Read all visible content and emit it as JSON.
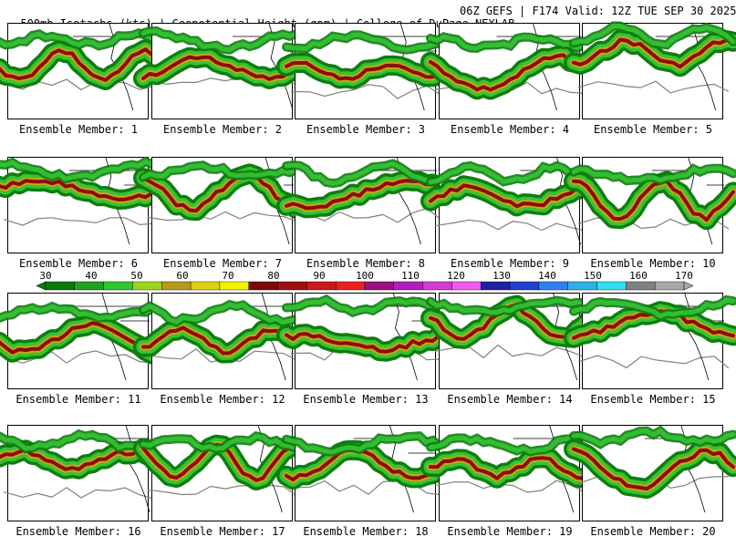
{
  "header": {
    "left": "500mb Isotachs (kts) | Geopotential Height (gpm) | College of DuPage NEXLAB",
    "right": "06Z GEFS | F174 Valid: 12Z TUE SEP 30 2025"
  },
  "colorbar": {
    "ticks": [
      "30",
      "40",
      "50",
      "60",
      "70",
      "80",
      "90",
      "100",
      "110",
      "120",
      "130",
      "140",
      "150",
      "160",
      "170"
    ],
    "colors": [
      "#0a7a0a",
      "#22a022",
      "#2ec82e",
      "#9bd61f",
      "#b89a1c",
      "#e0d012",
      "#f2f200",
      "#7a0a0a",
      "#a01010",
      "#c81a1a",
      "#e82020",
      "#9a1080",
      "#b020c0",
      "#d43ad4",
      "#f05af0",
      "#2020a0",
      "#2040d0",
      "#2f80f0",
      "#30b0e8",
      "#30e0f0",
      "#808080",
      "#a8a8a8"
    ]
  },
  "members": [
    {
      "label": "Ensemble Member: 1"
    },
    {
      "label": "Ensemble Member: 2"
    },
    {
      "label": "Ensemble Member: 3"
    },
    {
      "label": "Ensemble Member: 4"
    },
    {
      "label": "Ensemble Member: 5"
    },
    {
      "label": "Ensemble Member: 6"
    },
    {
      "label": "Ensemble Member: 7"
    },
    {
      "label": "Ensemble Member: 8"
    },
    {
      "label": "Ensemble Member: 9"
    },
    {
      "label": "Ensemble Member: 10"
    },
    {
      "label": "Ensemble Member: 11"
    },
    {
      "label": "Ensemble Member: 12"
    },
    {
      "label": "Ensemble Member: 13"
    },
    {
      "label": "Ensemble Member: 14"
    },
    {
      "label": "Ensemble Member: 15"
    },
    {
      "label": "Ensemble Member: 16"
    },
    {
      "label": "Ensemble Member: 17"
    },
    {
      "label": "Ensemble Member: 18"
    },
    {
      "label": "Ensemble Member: 19"
    },
    {
      "label": "Ensemble Member: 20"
    }
  ],
  "colors": {
    "jet_outer": "#0f7d0f",
    "jet_mid": "#34c434",
    "jet_inner": "#c9a514",
    "jet_core": "#8a0d0d",
    "contour": "#808080",
    "coast": "#000000"
  }
}
